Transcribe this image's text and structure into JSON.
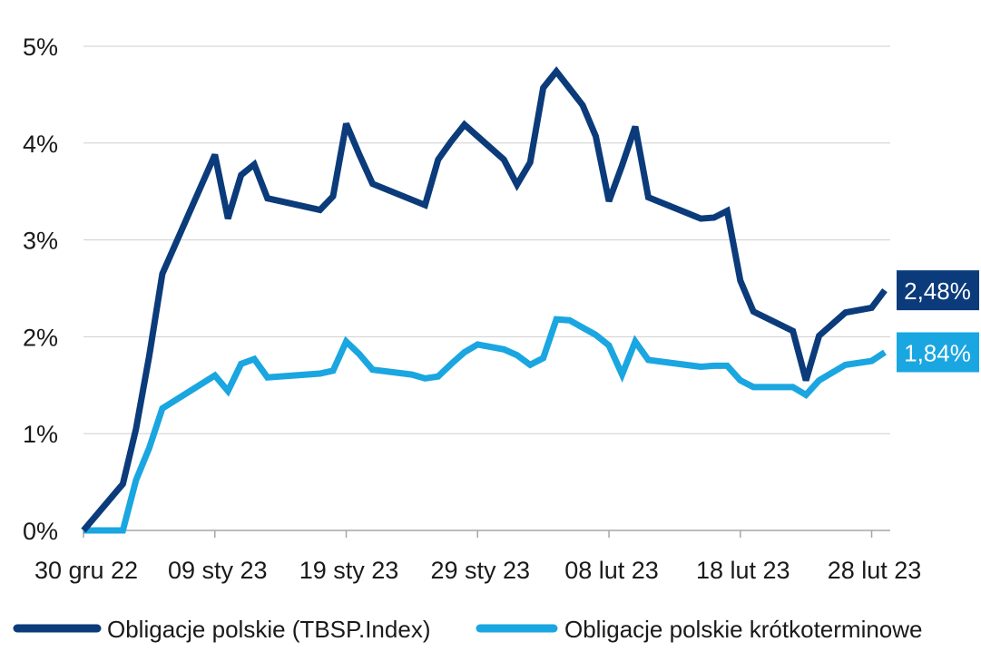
{
  "chart_data": {
    "type": "line",
    "title": "",
    "xlabel": "",
    "ylabel": "",
    "ylim": [
      0,
      5
    ],
    "y_ticks": [
      0,
      1,
      2,
      3,
      4,
      5
    ],
    "y_tick_labels": [
      "0%",
      "1%",
      "2%",
      "3%",
      "4%",
      "5%"
    ],
    "x_ticks": [
      "2022-12-30",
      "2023-01-09",
      "2023-01-19",
      "2023-01-29",
      "2023-02-08",
      "2023-02-18",
      "2023-02-28"
    ],
    "x_tick_labels": [
      "30 gru 22",
      "09 sty 23",
      "19 sty 23",
      "29 sty 23",
      "08 lut 23",
      "18 lut 23",
      "28 lut 23"
    ],
    "xlim": [
      "2022-12-30",
      "2023-03-01"
    ],
    "grid": "horizontal",
    "legend_position": "bottom",
    "series": [
      {
        "name": "Obligacje polskie (TBSP.Index)",
        "color": "#0b3b7a",
        "end_label": "2,48%",
        "points": [
          [
            "2022-12-30",
            0.0
          ],
          [
            "2023-01-02",
            0.48
          ],
          [
            "2023-01-03",
            1.05
          ],
          [
            "2023-01-04",
            1.8
          ],
          [
            "2023-01-05",
            2.65
          ],
          [
            "2023-01-09",
            3.88
          ],
          [
            "2023-01-10",
            3.22
          ],
          [
            "2023-01-11",
            3.67
          ],
          [
            "2023-01-12",
            3.78
          ],
          [
            "2023-01-13",
            3.43
          ],
          [
            "2023-01-16",
            3.34
          ],
          [
            "2023-01-17",
            3.31
          ],
          [
            "2023-01-18",
            3.45
          ],
          [
            "2023-01-19",
            4.2
          ],
          [
            "2023-01-20",
            3.88
          ],
          [
            "2023-01-21",
            3.58
          ],
          [
            "2023-01-25",
            3.36
          ],
          [
            "2023-01-26",
            3.83
          ],
          [
            "2023-01-27",
            4.02
          ],
          [
            "2023-01-28",
            4.19
          ],
          [
            "2023-01-31",
            3.83
          ],
          [
            "2023-02-01",
            3.57
          ],
          [
            "2023-02-02",
            3.8
          ],
          [
            "2023-02-03",
            4.57
          ],
          [
            "2023-02-04",
            4.74
          ],
          [
            "2023-02-06",
            4.39
          ],
          [
            "2023-02-07",
            4.07
          ],
          [
            "2023-02-08",
            3.4
          ],
          [
            "2023-02-09",
            3.77
          ],
          [
            "2023-02-10",
            4.17
          ],
          [
            "2023-02-11",
            3.44
          ],
          [
            "2023-02-15",
            3.22
          ],
          [
            "2023-02-16",
            3.23
          ],
          [
            "2023-02-17",
            3.3
          ],
          [
            "2023-02-18",
            2.58
          ],
          [
            "2023-02-19",
            2.26
          ],
          [
            "2023-02-22",
            2.06
          ],
          [
            "2023-02-23",
            1.55
          ],
          [
            "2023-02-24",
            2.01
          ],
          [
            "2023-02-26",
            2.25
          ],
          [
            "2023-02-28",
            2.3
          ],
          [
            "2023-03-01",
            2.48
          ]
        ]
      },
      {
        "name": "Obligacje polskie krótkoterminowe",
        "color": "#1aa6e0",
        "end_label": "1,84%",
        "points": [
          [
            "2022-12-30",
            0.0
          ],
          [
            "2023-01-02",
            0.0
          ],
          [
            "2023-01-03",
            0.52
          ],
          [
            "2023-01-04",
            0.85
          ],
          [
            "2023-01-05",
            1.26
          ],
          [
            "2023-01-09",
            1.6
          ],
          [
            "2023-01-10",
            1.44
          ],
          [
            "2023-01-11",
            1.72
          ],
          [
            "2023-01-12",
            1.77
          ],
          [
            "2023-01-13",
            1.58
          ],
          [
            "2023-01-17",
            1.62
          ],
          [
            "2023-01-18",
            1.65
          ],
          [
            "2023-01-19",
            1.95
          ],
          [
            "2023-01-20",
            1.82
          ],
          [
            "2023-01-21",
            1.66
          ],
          [
            "2023-01-24",
            1.61
          ],
          [
            "2023-01-25",
            1.57
          ],
          [
            "2023-01-26",
            1.59
          ],
          [
            "2023-01-27",
            1.72
          ],
          [
            "2023-01-28",
            1.84
          ],
          [
            "2023-01-29",
            1.92
          ],
          [
            "2023-01-31",
            1.87
          ],
          [
            "2023-02-01",
            1.81
          ],
          [
            "2023-02-02",
            1.71
          ],
          [
            "2023-02-03",
            1.78
          ],
          [
            "2023-02-04",
            2.18
          ],
          [
            "2023-02-05",
            2.17
          ],
          [
            "2023-02-07",
            2.02
          ],
          [
            "2023-02-08",
            1.91
          ],
          [
            "2023-02-09",
            1.61
          ],
          [
            "2023-02-10",
            1.95
          ],
          [
            "2023-02-11",
            1.76
          ],
          [
            "2023-02-15",
            1.69
          ],
          [
            "2023-02-16",
            1.7
          ],
          [
            "2023-02-17",
            1.7
          ],
          [
            "2023-02-18",
            1.55
          ],
          [
            "2023-02-19",
            1.48
          ],
          [
            "2023-02-22",
            1.48
          ],
          [
            "2023-02-23",
            1.4
          ],
          [
            "2023-02-24",
            1.55
          ],
          [
            "2023-02-26",
            1.71
          ],
          [
            "2023-02-28",
            1.75
          ],
          [
            "2023-03-01",
            1.84
          ]
        ]
      }
    ]
  }
}
